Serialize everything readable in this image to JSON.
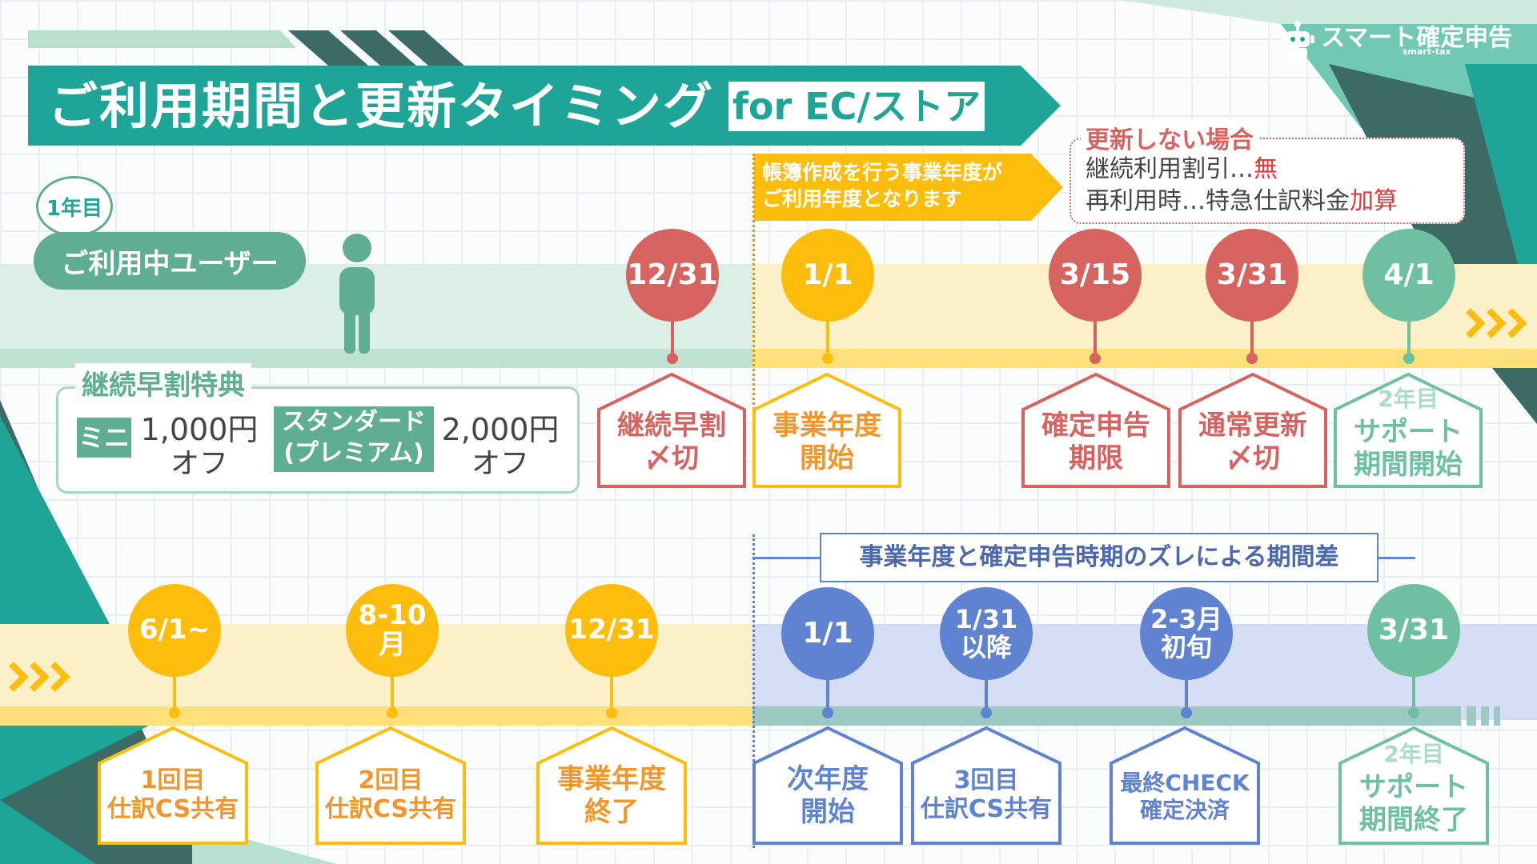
{
  "title": {
    "main": "ご利用期間と更新タイミング",
    "tag": "for EC/ストア"
  },
  "brand": {
    "name": "スマート確定申告",
    "sub": "smart-tax"
  },
  "year_badge": "1年目",
  "user_label": "ご利用中ユーザー",
  "early_benefit": {
    "title": "継続早割特典",
    "mini_label": "ミニ",
    "mini_price": "1,000円",
    "mini_off": "オフ",
    "standard_label": "スタンダード\n(プレミアム)",
    "standard_price": "2,000円",
    "standard_off": "オフ"
  },
  "fiscal_note": "帳簿作成を行う事業年度が\nご利用年度となります",
  "no_renew": {
    "title": "更新しない場合",
    "line1_prefix": "継続利用割引…",
    "line1_value": "無",
    "line2_prefix": "再利用時…特急仕訳料金",
    "line2_value": "加算"
  },
  "gap_label": "事業年度と確定申告時期のズレによる期間差",
  "top_timeline": [
    {
      "date": "12/31",
      "label": "継続早割\n〆切"
    },
    {
      "date": "1/1",
      "label": "事業年度\n開始"
    },
    {
      "date": "3/15",
      "label": "確定申告\n期限"
    },
    {
      "date": "3/31",
      "label": "通常更新\n〆切"
    },
    {
      "date": "4/1",
      "label_sub": "2年目",
      "label": "サポート\n期間開始"
    }
  ],
  "bottom_timeline": [
    {
      "date": "6/1~",
      "label": "1回目\n仕訳CS共有"
    },
    {
      "date": "8-10月",
      "label": "2回目\n仕訳CS共有"
    },
    {
      "date": "12/31",
      "label": "事業年度\n終了"
    },
    {
      "date": "1/1",
      "label": "次年度\n開始"
    },
    {
      "date": "1/31\n以降",
      "label": "3回目\n仕訳CS共有"
    },
    {
      "date": "2-3月\n初旬",
      "label": "最終CHECK\n確定決済"
    },
    {
      "date": "3/31",
      "label_sub": "2年目",
      "label": "サポート\n期間終了"
    }
  ],
  "colors": {
    "teal": "#1ea598",
    "dark_teal": "#3c6b65",
    "mint": "#6fc6a4",
    "red": "#d6635f",
    "yellow": "#fdbd0c",
    "orange_text": "#f0962b",
    "blue": "#5f82d1",
    "green_pin": "#6fc0a0"
  }
}
